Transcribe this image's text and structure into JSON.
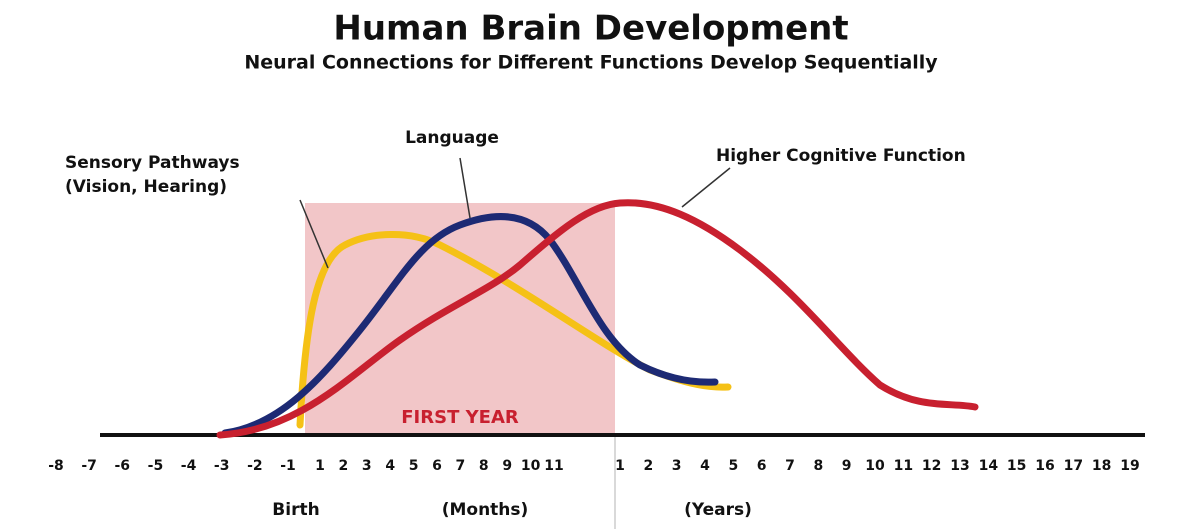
{
  "title": "Human Brain Development",
  "subtitle": "Neural Connections for Different Functions Develop Sequentially",
  "curves": {
    "sensory": [
      "Sensory Pathways",
      "(Vision, Hearing)"
    ],
    "language": "Language",
    "cognitive": "Higher Cognitive Function"
  },
  "first_year": "FIRST YEAR",
  "axis": {
    "prenatal": [
      "-8",
      "-7",
      "-6",
      "-5",
      "-4",
      "-3",
      "-2",
      "-1"
    ],
    "months": [
      "1",
      "2",
      "3",
      "4",
      "5",
      "6",
      "7",
      "8",
      "9",
      "10",
      "11"
    ],
    "years": [
      "1",
      "2",
      "3",
      "4",
      "5",
      "6",
      "7",
      "8",
      "9",
      "10",
      "11",
      "12",
      "13",
      "14",
      "15",
      "16",
      "17",
      "18",
      "19"
    ]
  },
  "bottom_labels": {
    "birth": "Birth",
    "months": "(Months)",
    "years": "(Years)"
  }
}
